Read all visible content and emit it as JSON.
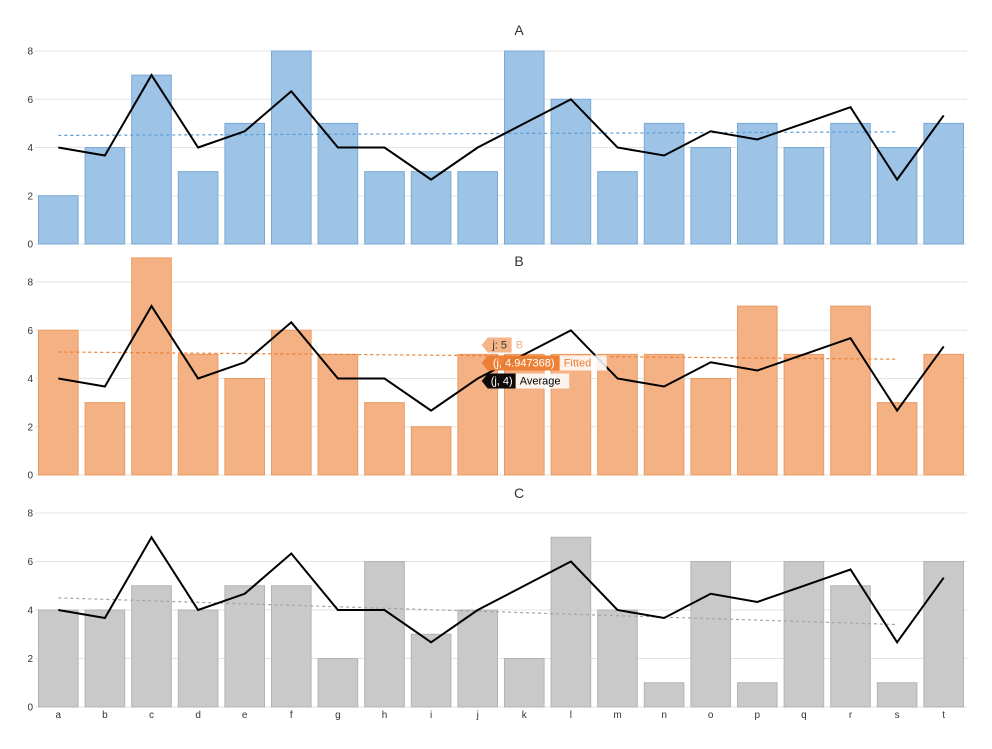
{
  "chart_data": {
    "type": "bar",
    "categories": [
      "a",
      "b",
      "c",
      "d",
      "e",
      "f",
      "g",
      "h",
      "i",
      "j",
      "k",
      "l",
      "m",
      "n",
      "o",
      "p",
      "q",
      "r",
      "s",
      "t"
    ],
    "ylim": [
      0,
      8
    ],
    "yticks": [
      "0",
      "2",
      "4",
      "6",
      "8"
    ],
    "grid": true,
    "line_series": {
      "name": "Average",
      "color": "#000000",
      "values": [
        4.0,
        3.67,
        7.0,
        4.0,
        4.67,
        6.33,
        4.0,
        4.0,
        2.67,
        4.0,
        5.0,
        6.0,
        4.0,
        3.67,
        4.67,
        4.33,
        5.0,
        5.67,
        2.67,
        5.33
      ]
    },
    "panels": [
      {
        "title": "A",
        "name": "A",
        "color": "#9dc3e6",
        "stroke": "#7aa9d6",
        "trend_color": "#5b9bd5",
        "values": [
          2,
          4,
          7,
          3,
          5,
          8,
          5,
          3,
          3,
          3,
          8,
          6,
          3,
          5,
          4,
          5,
          4,
          5,
          4,
          5
        ],
        "trend": [
          4.5,
          4.65
        ]
      },
      {
        "title": "B",
        "name": "B",
        "color": "#f4b183",
        "stroke": "#e99b63",
        "trend_color": "#ed7d31",
        "values": [
          6,
          3,
          9,
          5,
          4,
          6,
          5,
          3,
          2,
          5,
          5,
          5,
          5,
          5,
          4,
          7,
          5,
          7,
          3,
          5
        ],
        "trend": [
          5.1,
          4.8
        ]
      },
      {
        "title": "C",
        "name": "C",
        "color": "#c9c9c9",
        "stroke": "#b3b3b3",
        "trend_color": "#a5a5a5",
        "values": [
          4,
          4,
          5,
          4,
          5,
          5,
          2,
          6,
          3,
          4,
          2,
          7,
          4,
          1,
          6,
          1,
          6,
          5,
          1,
          6
        ],
        "trend": [
          4.5,
          3.4
        ]
      }
    ],
    "tooltip": {
      "category": "j",
      "rows": [
        {
          "key": "j: 5",
          "label": "B",
          "color": "#f4b183",
          "text_color": "#333333",
          "label_color": "#f4b183"
        },
        {
          "key": "(j, 4.947368)",
          "label": "Fitted",
          "color": "#ed7d31",
          "text_color": "#ffffff",
          "label_color": "#ed7d31"
        },
        {
          "key": "(j, 4)",
          "label": "Average",
          "color": "#000000",
          "text_color": "#ffffff",
          "label_color": "#000000"
        }
      ]
    }
  }
}
